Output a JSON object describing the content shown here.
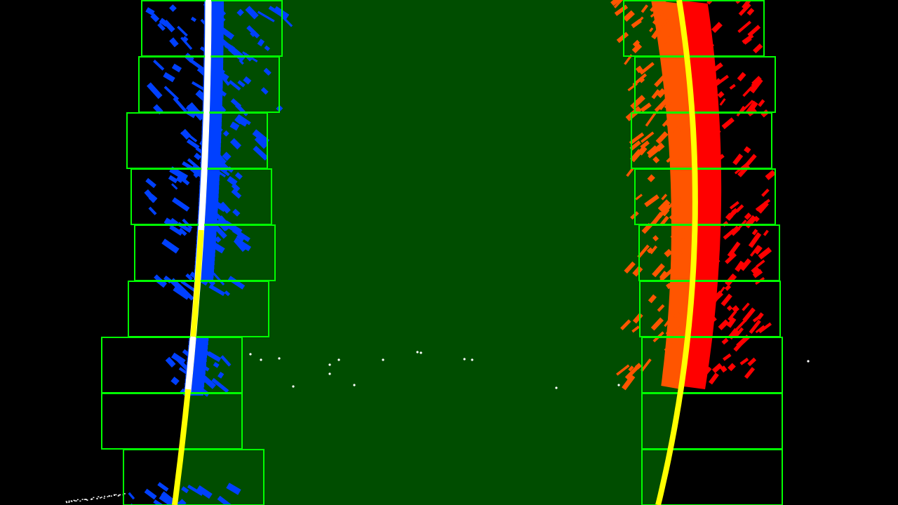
{
  "scene": {
    "type": "lane-detection-birdseye",
    "background": "#000000",
    "lane_fill": "#004d00",
    "window_color": "#00ff00",
    "fit_line_color": "#ffff00",
    "left_pixel_color": "#0040ff",
    "right_pixel_color": "#ff0000",
    "right_pixel_secondary_color": "#ff5500",
    "left_highlight_color": "#ffffff",
    "noise_color": "#ffffff"
  },
  "windows": {
    "left_count": 9,
    "right_count": 9
  }
}
